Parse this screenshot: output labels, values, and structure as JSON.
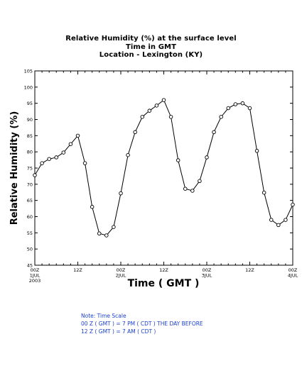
{
  "chart_data": {
    "type": "line",
    "title_lines": [
      "Relative Humidity (%) at the surface level",
      "Time in GMT",
      "Location - Lexington (KY)"
    ],
    "xlabel": "Time ( GMT )",
    "ylabel": "Relative Humidity (%)",
    "ylim": [
      45,
      105
    ],
    "y_ticks": [
      45,
      50,
      55,
      60,
      65,
      70,
      75,
      80,
      85,
      90,
      95,
      100,
      105
    ],
    "xlim_hours": [
      0,
      72
    ],
    "x_tick_labels": [
      {
        "hour": 0,
        "lines": [
          "00Z",
          "1JUL",
          "2003"
        ]
      },
      {
        "hour": 12,
        "lines": [
          "12Z"
        ]
      },
      {
        "hour": 24,
        "lines": [
          "00Z",
          "2JUL"
        ]
      },
      {
        "hour": 36,
        "lines": [
          "12Z"
        ]
      },
      {
        "hour": 48,
        "lines": [
          "00Z",
          "3JUL"
        ]
      },
      {
        "hour": 60,
        "lines": [
          "12Z"
        ]
      },
      {
        "hour": 72,
        "lines": [
          "00Z",
          "4JUL"
        ]
      }
    ],
    "grid": false,
    "series": [
      {
        "hours": [
          0,
          2,
          4,
          6,
          8,
          10,
          12,
          14,
          16,
          18,
          20,
          22,
          24,
          26,
          28,
          30,
          32,
          34,
          36,
          38,
          40,
          42,
          44,
          46,
          48,
          50,
          52,
          54,
          56,
          58,
          60,
          62,
          64,
          66,
          68,
          70,
          72
        ],
        "values": [
          72.8,
          76.5,
          77.8,
          78.3,
          79.8,
          82.4,
          85.0,
          76.5,
          63.0,
          54.8,
          54.2,
          56.8,
          67.2,
          79.0,
          86.1,
          90.8,
          92.7,
          94.3,
          96.0,
          90.8,
          77.4,
          68.6,
          68.0,
          71.0,
          78.3,
          86.1,
          90.8,
          93.5,
          94.7,
          95.0,
          93.5,
          80.3,
          67.4,
          59.0,
          57.4,
          59.0,
          63.7
        ]
      }
    ],
    "marker": "open-circle",
    "line_color": "#000000"
  },
  "note": {
    "lines": [
      "Note: Time Scale",
      "00 Z ( GMT ) = 7 PM ( CDT ) THE DAY BEFORE",
      "12 Z ( GMT ) = 7 AM ( CDT )"
    ],
    "color": "#1a3fd0"
  }
}
